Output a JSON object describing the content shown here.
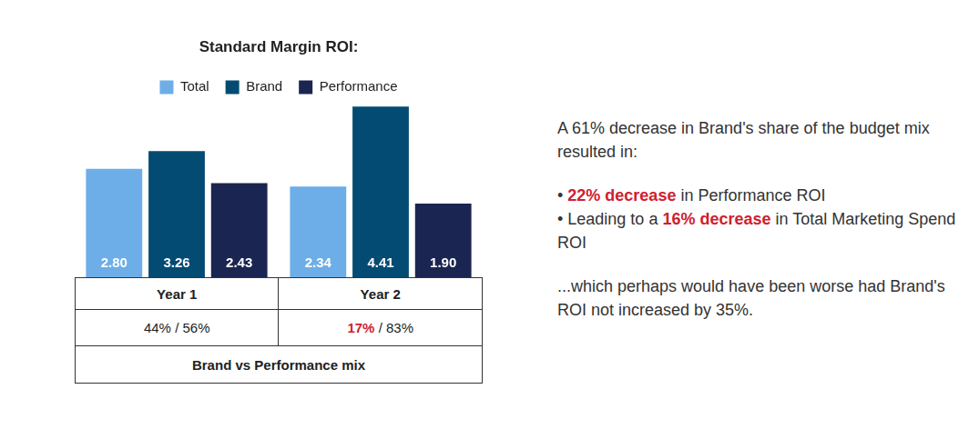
{
  "chart_data": {
    "type": "bar",
    "title": "Standard Margin ROI:",
    "categories": [
      "Year 1",
      "Year 2"
    ],
    "series": [
      {
        "name": "Total",
        "color": "#6daee8",
        "values": [
          2.8,
          2.34
        ],
        "value_labels": [
          "2.80",
          "2.34"
        ]
      },
      {
        "name": "Brand",
        "color": "#034b73",
        "values": [
          3.26,
          4.41
        ],
        "value_labels": [
          "3.26",
          "4.41"
        ]
      },
      {
        "name": "Performance",
        "color": "#1b2551",
        "values": [
          2.43,
          1.9
        ],
        "value_labels": [
          "2.43",
          "1.90"
        ]
      }
    ],
    "data_labels": true,
    "tick_labels": false,
    "grid": false,
    "legend": "top"
  },
  "table": {
    "rows": [
      [
        {
          "parts": [
            {
              "text": "44% / 56%"
            }
          ]
        },
        {
          "parts": [
            {
              "text": "17%",
              "color": "#d0202f"
            },
            {
              "text": " / 83%"
            }
          ]
        }
      ]
    ],
    "footer": "Brand vs Performance mix"
  },
  "annotation": {
    "intro": "A 61% decrease in Brand's share of the budget mix resulted in:",
    "bullets": [
      {
        "parts": [
          {
            "text": "• "
          },
          {
            "text": "22% decrease",
            "color": "#d0202f"
          },
          {
            "text": " in Performance ROI"
          }
        ]
      },
      {
        "parts": [
          {
            "text": "• Leading to a "
          },
          {
            "text": "16% decrease",
            "color": "#d0202f"
          },
          {
            "text": " in Total Marketing Spend ROI"
          }
        ]
      }
    ],
    "closing": "...which perhaps would have been worse had Brand's ROI not increased by 35%."
  }
}
